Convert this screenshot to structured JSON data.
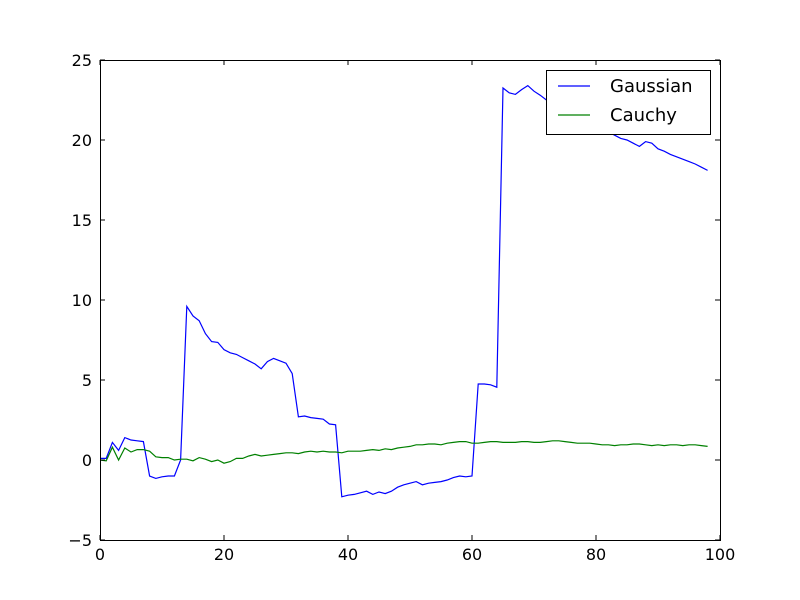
{
  "chart_data": {
    "type": "line",
    "title": "",
    "xlabel": "",
    "ylabel": "",
    "xlim": [
      0,
      100
    ],
    "ylim": [
      -5,
      25
    ],
    "xticks": [
      0,
      20,
      40,
      60,
      80,
      100
    ],
    "yticks": [
      -5,
      0,
      5,
      10,
      15,
      20,
      25
    ],
    "x_tick_labels": [
      "0",
      "20",
      "40",
      "60",
      "80",
      "100"
    ],
    "y_tick_labels": [
      "−5",
      "0",
      "5",
      "10",
      "15",
      "20",
      "25"
    ],
    "grid": false,
    "legend": "top-right",
    "series": [
      {
        "name": "Gaussian",
        "color": "#0000ff",
        "x": [
          0,
          1,
          2,
          3,
          4,
          5,
          6,
          7,
          8,
          9,
          10,
          11,
          12,
          13,
          14,
          15,
          16,
          17,
          18,
          19,
          20,
          21,
          22,
          23,
          24,
          25,
          26,
          27,
          28,
          29,
          30,
          31,
          32,
          33,
          34,
          35,
          36,
          37,
          38,
          39,
          40,
          41,
          42,
          43,
          44,
          45,
          46,
          47,
          48,
          49,
          50,
          51,
          52,
          53,
          54,
          55,
          56,
          57,
          58,
          59,
          60,
          61,
          62,
          63,
          64,
          65,
          66,
          67,
          68,
          69,
          70,
          71,
          72,
          73,
          74,
          75,
          76,
          77,
          78,
          79,
          80,
          81,
          82,
          83,
          84,
          85,
          86,
          87,
          88,
          89,
          90,
          91,
          92,
          93,
          94,
          95,
          96,
          97,
          98
        ],
        "y": [
          0.1,
          0.1,
          1.1,
          0.6,
          1.4,
          1.25,
          1.2,
          1.15,
          -1.0,
          -1.15,
          -1.05,
          -1.0,
          -1.0,
          0.0,
          9.6,
          9.0,
          8.7,
          7.9,
          7.4,
          7.35,
          6.9,
          6.7,
          6.6,
          6.4,
          6.2,
          6.0,
          5.7,
          6.15,
          6.35,
          6.2,
          6.05,
          5.4,
          2.7,
          2.75,
          2.65,
          2.6,
          2.55,
          2.25,
          2.2,
          -2.3,
          -2.2,
          -2.15,
          -2.05,
          -1.95,
          -2.15,
          -2.0,
          -2.1,
          -1.95,
          -1.7,
          -1.55,
          -1.45,
          -1.35,
          -1.55,
          -1.45,
          -1.4,
          -1.35,
          -1.25,
          -1.1,
          -1.0,
          -1.05,
          -1.0,
          4.75,
          4.75,
          4.7,
          4.55,
          23.25,
          22.95,
          22.85,
          23.15,
          23.4,
          23.05,
          22.8,
          22.5,
          22.3,
          22.05,
          21.8,
          21.6,
          21.4,
          21.3,
          21.1,
          20.9,
          20.7,
          20.5,
          20.3,
          20.1,
          20.0,
          19.8,
          19.6,
          19.9,
          19.8,
          19.45,
          19.3,
          19.1,
          18.95,
          18.8,
          18.65,
          18.5,
          18.3,
          18.1
        ]
      },
      {
        "name": "Cauchy",
        "color": "#008000",
        "x": [
          0,
          1,
          2,
          3,
          4,
          5,
          6,
          7,
          8,
          9,
          10,
          11,
          12,
          13,
          14,
          15,
          16,
          17,
          18,
          19,
          20,
          21,
          22,
          23,
          24,
          25,
          26,
          27,
          28,
          29,
          30,
          31,
          32,
          33,
          34,
          35,
          36,
          37,
          38,
          39,
          40,
          41,
          42,
          43,
          44,
          45,
          46,
          47,
          48,
          49,
          50,
          51,
          52,
          53,
          54,
          55,
          56,
          57,
          58,
          59,
          60,
          61,
          62,
          63,
          64,
          65,
          66,
          67,
          68,
          69,
          70,
          71,
          72,
          73,
          74,
          75,
          76,
          77,
          78,
          79,
          80,
          81,
          82,
          83,
          84,
          85,
          86,
          87,
          88,
          89,
          90,
          91,
          92,
          93,
          94,
          95,
          96,
          97,
          98
        ],
        "y": [
          0.0,
          -0.05,
          0.8,
          0.0,
          0.75,
          0.5,
          0.65,
          0.65,
          0.55,
          0.2,
          0.15,
          0.15,
          0.0,
          0.05,
          0.05,
          -0.05,
          0.15,
          0.05,
          -0.1,
          0.0,
          -0.2,
          -0.1,
          0.1,
          0.1,
          0.25,
          0.35,
          0.25,
          0.3,
          0.35,
          0.4,
          0.45,
          0.45,
          0.4,
          0.5,
          0.55,
          0.5,
          0.55,
          0.5,
          0.5,
          0.45,
          0.55,
          0.55,
          0.55,
          0.6,
          0.65,
          0.6,
          0.7,
          0.65,
          0.75,
          0.8,
          0.85,
          0.95,
          0.95,
          1.0,
          1.0,
          0.95,
          1.05,
          1.1,
          1.15,
          1.15,
          1.05,
          1.05,
          1.1,
          1.15,
          1.15,
          1.1,
          1.1,
          1.1,
          1.15,
          1.15,
          1.1,
          1.1,
          1.15,
          1.2,
          1.2,
          1.15,
          1.1,
          1.05,
          1.05,
          1.05,
          1.0,
          0.95,
          0.95,
          0.9,
          0.95,
          0.95,
          1.0,
          1.0,
          0.95,
          0.9,
          0.95,
          0.9,
          0.95,
          0.95,
          0.9,
          0.95,
          0.95,
          0.9,
          0.85
        ]
      }
    ]
  }
}
